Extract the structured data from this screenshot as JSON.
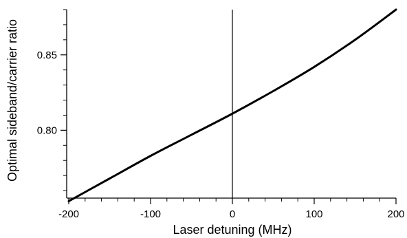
{
  "chart_data": {
    "type": "line",
    "title": "",
    "xlabel": "Laser detuning (MHz)",
    "ylabel": "Optimal sideband/carrier ratio",
    "xlim": [
      -200,
      200
    ],
    "ylim": [
      0.755,
      0.88
    ],
    "x_ticks": [
      -200,
      -100,
      0,
      100,
      200
    ],
    "x_tick_labels": [
      "-200",
      "-100",
      "0",
      "100",
      "200"
    ],
    "x_minor_step": 20,
    "y_ticks": [
      0.8,
      0.85
    ],
    "y_tick_labels": [
      "0.80",
      "0.85"
    ],
    "y_minor_step": 0.01,
    "grid": false,
    "zero_line": 0,
    "line_color": "#000000",
    "series": [
      {
        "x": [
          -200,
          -150,
          -100,
          -50,
          0,
          50,
          100,
          150,
          200
        ],
        "values": [
          0.753,
          0.768,
          0.783,
          0.797,
          0.811,
          0.826,
          0.842,
          0.86,
          0.88
        ]
      }
    ]
  }
}
